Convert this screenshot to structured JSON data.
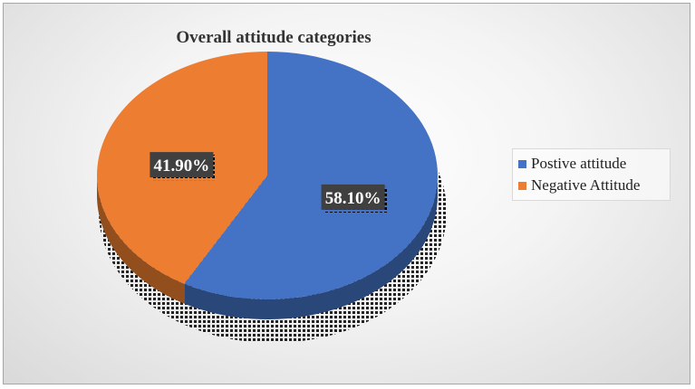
{
  "chart_data": {
    "type": "pie",
    "title": "Overall attitude categories",
    "categories": [
      "Postive attitude",
      "Negative Attitude"
    ],
    "values": [
      58.1,
      41.9
    ],
    "data_labels": [
      "58.10%",
      "41.90%"
    ],
    "colors": [
      "#4472c4",
      "#ed7d31"
    ],
    "legend_position": "right",
    "style": "3d"
  }
}
